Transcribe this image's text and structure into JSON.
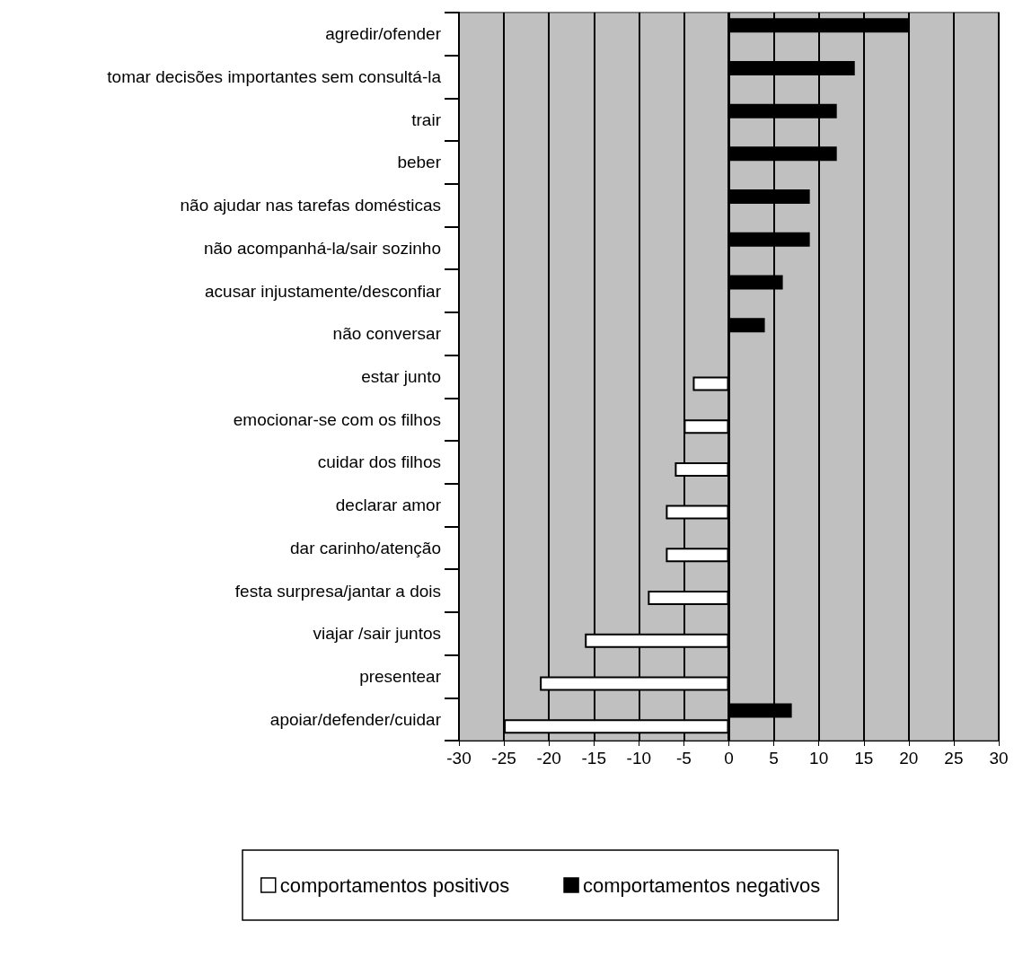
{
  "chart_data": {
    "type": "bar",
    "orientation": "horizontal",
    "categories": [
      "agredir/ofender",
      "tomar decisões importantes sem consultá-la",
      "trair",
      "beber",
      "não ajudar nas tarefas domésticas",
      "não acompanhá-la/sair sozinho",
      "acusar injustamente/desconfiar",
      "não conversar",
      "estar junto",
      "emocionar-se com os filhos",
      "cuidar dos filhos",
      "declarar amor",
      "dar carinho/atenção",
      "festa surpresa/jantar a dois",
      "viajar /sair juntos",
      "presentear",
      "apoiar/defender/cuidar"
    ],
    "series": [
      {
        "name": "comportamentos negativos",
        "color": "#000000",
        "values": [
          20,
          14,
          12,
          12,
          9,
          9,
          6,
          4,
          0,
          0,
          0,
          0,
          0,
          0,
          0,
          0,
          7
        ]
      },
      {
        "name": "comportamentos positivos",
        "color": "#ffffff",
        "values": [
          null,
          null,
          null,
          null,
          null,
          null,
          null,
          null,
          -4,
          -5,
          -6,
          -7,
          -7,
          -9,
          -16,
          -21,
          -25
        ]
      }
    ],
    "xlim": [
      -30,
      30
    ],
    "xticks": [
      -30,
      -25,
      -20,
      -15,
      -10,
      -5,
      0,
      5,
      10,
      15,
      20,
      25,
      30
    ],
    "grid": "x",
    "legend": "bottom"
  }
}
